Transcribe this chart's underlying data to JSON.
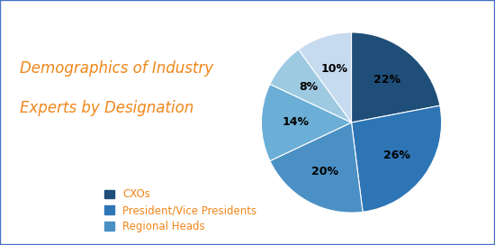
{
  "title_line1": "Demographics of Industry",
  "title_line2": "Experts by Designation",
  "title_color": "#F0861A",
  "title_fontsize": 12,
  "slices": [
    22,
    26,
    20,
    14,
    8,
    10
  ],
  "labels": [
    "22%",
    "26%",
    "20%",
    "14%",
    "8%",
    "10%"
  ],
  "colors": [
    "#1F4E79",
    "#2E75B6",
    "#4A90C4",
    "#6BAED6",
    "#9ECAE1",
    "#C6DBEF"
  ],
  "legend_labels": [
    "CXOs",
    "President/Vice Presidents",
    "Regional Heads"
  ],
  "legend_colors": [
    "#1F4E79",
    "#2E75B6",
    "#4A90C4"
  ],
  "background_color": "#FFFFFF",
  "border_color": "#4472C4",
  "startangle": 90,
  "label_fontsize": 9,
  "legend_fontsize": 8.5
}
